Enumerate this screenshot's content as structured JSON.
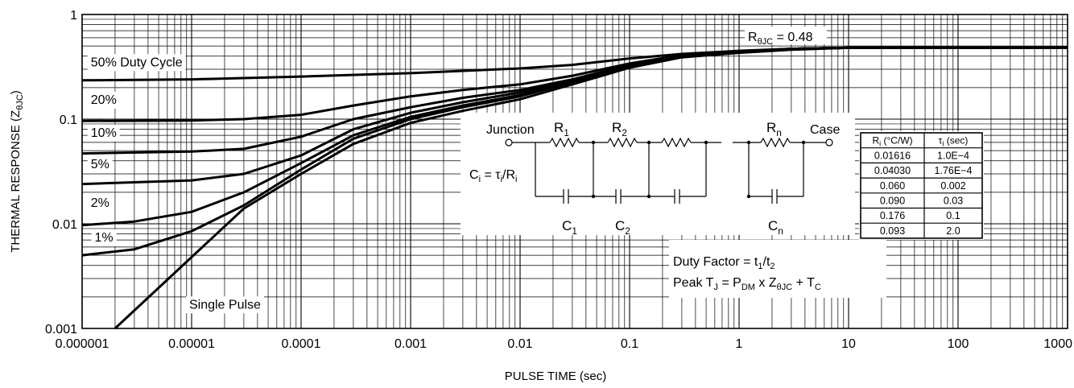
{
  "chart_data": {
    "type": "line",
    "xscale": "log",
    "yscale": "log",
    "xlim": [
      1e-06,
      1000
    ],
    "ylim": [
      0.001,
      1
    ],
    "grid": true,
    "xlabel": "PULSE TIME (sec)",
    "ylabel": {
      "main": "THERMAL RESPONSE (Z",
      "sub": "θJC",
      "close": ")"
    },
    "x_ticks": [
      {
        "v": 1e-06,
        "label": "0.000001"
      },
      {
        "v": 1e-05,
        "label": "0.00001"
      },
      {
        "v": 0.0001,
        "label": "0.0001"
      },
      {
        "v": 0.001,
        "label": "0.001"
      },
      {
        "v": 0.01,
        "label": "0.01"
      },
      {
        "v": 0.1,
        "label": "0.1"
      },
      {
        "v": 1,
        "label": "1"
      },
      {
        "v": 10,
        "label": "10"
      },
      {
        "v": 100,
        "label": "100"
      },
      {
        "v": 1000,
        "label": "1000"
      }
    ],
    "y_ticks": [
      {
        "v": 1,
        "label": "1"
      },
      {
        "v": 0.1,
        "label": "0.1"
      },
      {
        "v": 0.01,
        "label": "0.01"
      },
      {
        "v": 0.001,
        "label": "0.001"
      }
    ],
    "series": [
      {
        "name": "50% Duty Cycle",
        "label_at": [
          1.2e-06,
          0.32
        ],
        "points": [
          [
            1e-06,
            0.235
          ],
          [
            1e-05,
            0.24
          ],
          [
            0.0001,
            0.255
          ],
          [
            0.001,
            0.275
          ],
          [
            0.01,
            0.305
          ],
          [
            0.03,
            0.33
          ],
          [
            0.1,
            0.38
          ],
          [
            0.3,
            0.42
          ],
          [
            1,
            0.45
          ],
          [
            3,
            0.47
          ],
          [
            10,
            0.48
          ],
          [
            100,
            0.48
          ],
          [
            1000,
            0.48
          ]
        ]
      },
      {
        "name": "20%",
        "label_at": [
          1.2e-06,
          0.14
        ],
        "points": [
          [
            1e-06,
            0.096
          ],
          [
            1e-05,
            0.097
          ],
          [
            3e-05,
            0.1
          ],
          [
            0.0001,
            0.11
          ],
          [
            0.0003,
            0.135
          ],
          [
            0.001,
            0.165
          ],
          [
            0.003,
            0.19
          ],
          [
            0.01,
            0.215
          ],
          [
            0.03,
            0.26
          ],
          [
            0.1,
            0.34
          ],
          [
            0.3,
            0.41
          ],
          [
            1,
            0.445
          ],
          [
            3,
            0.47
          ],
          [
            10,
            0.48
          ],
          [
            1000,
            0.48
          ]
        ]
      },
      {
        "name": "10%",
        "label_at": [
          1.2e-06,
          0.068
        ],
        "points": [
          [
            1e-06,
            0.047
          ],
          [
            1e-05,
            0.049
          ],
          [
            3e-05,
            0.052
          ],
          [
            0.0001,
            0.068
          ],
          [
            0.0003,
            0.1
          ],
          [
            0.001,
            0.13
          ],
          [
            0.003,
            0.16
          ],
          [
            0.01,
            0.19
          ],
          [
            0.03,
            0.24
          ],
          [
            0.1,
            0.33
          ],
          [
            0.3,
            0.4
          ],
          [
            1,
            0.44
          ],
          [
            3,
            0.47
          ],
          [
            10,
            0.48
          ],
          [
            1000,
            0.48
          ]
        ]
      },
      {
        "name": "5%",
        "label_at": [
          1.2e-06,
          0.034
        ],
        "points": [
          [
            1e-06,
            0.024
          ],
          [
            1e-05,
            0.026
          ],
          [
            3e-05,
            0.03
          ],
          [
            0.0001,
            0.045
          ],
          [
            0.0003,
            0.08
          ],
          [
            0.001,
            0.115
          ],
          [
            0.003,
            0.145
          ],
          [
            0.01,
            0.18
          ],
          [
            0.03,
            0.235
          ],
          [
            0.1,
            0.33
          ],
          [
            0.3,
            0.4
          ],
          [
            1,
            0.44
          ],
          [
            3,
            0.47
          ],
          [
            10,
            0.48
          ],
          [
            1000,
            0.48
          ]
        ]
      },
      {
        "name": "2%",
        "label_at": [
          1.2e-06,
          0.0145
        ],
        "points": [
          [
            1e-06,
            0.0097
          ],
          [
            3e-06,
            0.0105
          ],
          [
            1e-05,
            0.013
          ],
          [
            3e-05,
            0.02
          ],
          [
            0.0001,
            0.038
          ],
          [
            0.0003,
            0.07
          ],
          [
            0.001,
            0.105
          ],
          [
            0.003,
            0.135
          ],
          [
            0.01,
            0.17
          ],
          [
            0.03,
            0.23
          ],
          [
            0.1,
            0.32
          ],
          [
            0.3,
            0.4
          ],
          [
            1,
            0.44
          ],
          [
            3,
            0.47
          ],
          [
            10,
            0.48
          ],
          [
            1000,
            0.48
          ]
        ]
      },
      {
        "name": "1%",
        "label_at": [
          1.3e-06,
          0.0068
        ],
        "points": [
          [
            1e-06,
            0.005
          ],
          [
            3e-06,
            0.0057
          ],
          [
            1e-05,
            0.0085
          ],
          [
            3e-05,
            0.015
          ],
          [
            0.0001,
            0.033
          ],
          [
            0.0003,
            0.065
          ],
          [
            0.001,
            0.1
          ],
          [
            0.003,
            0.13
          ],
          [
            0.01,
            0.165
          ],
          [
            0.03,
            0.225
          ],
          [
            0.1,
            0.32
          ],
          [
            0.3,
            0.4
          ],
          [
            1,
            0.44
          ],
          [
            3,
            0.47
          ],
          [
            10,
            0.48
          ],
          [
            1000,
            0.48
          ]
        ]
      },
      {
        "name": "Single Pulse",
        "label_at": [
          9.5e-06,
          0.00155
        ],
        "points": [
          [
            2e-06,
            0.001
          ],
          [
            1e-05,
            0.0048
          ],
          [
            3e-05,
            0.014
          ],
          [
            0.0001,
            0.03
          ],
          [
            0.0003,
            0.058
          ],
          [
            0.001,
            0.092
          ],
          [
            0.003,
            0.12
          ],
          [
            0.01,
            0.155
          ],
          [
            0.03,
            0.215
          ],
          [
            0.1,
            0.31
          ],
          [
            0.3,
            0.39
          ],
          [
            1,
            0.43
          ],
          [
            3,
            0.46
          ],
          [
            10,
            0.48
          ],
          [
            1000,
            0.48
          ]
        ]
      }
    ],
    "annotations": {
      "rthjc": {
        "lead": "R",
        "sub": "θJC",
        "value": " = 0.48"
      },
      "duty_factor": {
        "text": "Duty Factor = t",
        "sub1": "1",
        "slash": "/t",
        "sub2": "2"
      },
      "peak_tj": {
        "a": "Peak T",
        "sub_a": "J",
        "b": " = P",
        "sub_b": "DM",
        "c": " x Z",
        "sub_c": "θJC",
        "d": " + T",
        "sub_d": "C"
      }
    },
    "circuit": {
      "junction": "Junction",
      "case": "Case",
      "ci_formula": {
        "a": "C",
        "sub_a": "i",
        "b": " = τ",
        "sub_b": "i",
        "c": "/R",
        "sub_c": "i"
      },
      "resistors": [
        {
          "letter": "R",
          "sub": "1"
        },
        {
          "letter": "R",
          "sub": "2"
        },
        {
          "letter": "R",
          "sub": "n"
        }
      ],
      "capacitors": [
        {
          "letter": "C",
          "sub": "1"
        },
        {
          "letter": "C",
          "sub": "2"
        },
        {
          "letter": "C",
          "sub": "n"
        }
      ]
    },
    "table": {
      "header": [
        {
          "a": "R",
          "sub": "i",
          "b": " (°C/W)"
        },
        {
          "a": "τ",
          "sub": "i",
          "b": " (sec)"
        }
      ],
      "rows": [
        [
          "0.01616",
          "1.0E−4"
        ],
        [
          "0.04030",
          "1.76E−4"
        ],
        [
          "0.060",
          "0.002"
        ],
        [
          "0.090",
          "0.03"
        ],
        [
          "0.176",
          "0.1"
        ],
        [
          "0.093",
          "2.0"
        ]
      ]
    }
  }
}
